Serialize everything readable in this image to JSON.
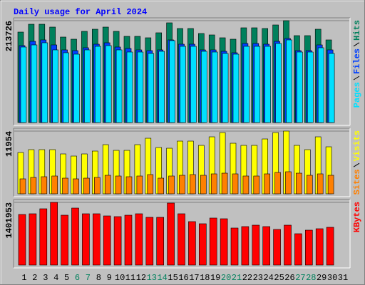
{
  "chart_data": [
    {
      "type": "bar",
      "title": "Daily usage for April 2024",
      "ylim": [
        0,
        213726
      ],
      "yticks": [
        213726
      ],
      "series": [
        {
          "name": "Hits",
          "color": "#00805c",
          "values": [
            189814,
            206255,
            206255,
            200276,
            179352,
            174868,
            191309,
            195793,
            200276,
            191309,
            180847,
            180847,
            177857,
            188320,
            209244,
            197287,
            197287,
            186825,
            183836,
            177857,
            174868,
            198782,
            198782,
            197287,
            204760,
            213726,
            182341,
            182341,
            195793,
            173374,
            null
          ]
        },
        {
          "name": "Files",
          "color": "#0040ff",
          "values": [
            161417,
            170384,
            173374,
            162911,
            152449,
            150955,
            156933,
            164406,
            167395,
            158428,
            155438,
            152449,
            150955,
            152449,
            173374,
            164406,
            164406,
            152449,
            152449,
            149460,
            146471,
            165901,
            165901,
            164406,
            170384,
            176363,
            150955,
            150955,
            162911,
            152449,
            null
          ]
        },
        {
          "name": "Pages",
          "color": "#00e0ff",
          "values": [
            158428,
            162911,
            167395,
            152449,
            146471,
            143482,
            152449,
            159922,
            161417,
            152449,
            147965,
            147965,
            144976,
            149460,
            171879,
            159922,
            159922,
            149460,
            147965,
            144976,
            143482,
            159922,
            159922,
            159922,
            165901,
            173374,
            147965,
            147965,
            156933,
            144976,
            null
          ]
        }
      ]
    },
    {
      "type": "bar",
      "ylim": [
        0,
        11954
      ],
      "yticks": [
        11954
      ],
      "series": [
        {
          "name": "Visits",
          "color": "#ffff00",
          "values": [
            7876,
            8420,
            8420,
            8420,
            7605,
            7197,
            7605,
            8148,
            9370,
            8284,
            8284,
            9370,
            10592,
            8827,
            8691,
            10049,
            10049,
            9234,
            10864,
            11679,
            9642,
            9234,
            9234,
            10457,
            11679,
            11954,
            9234,
            8420,
            10864,
            8963,
            null
          ]
        },
        {
          "name": "Sites",
          "color": "#ff8000",
          "values": [
            2852,
            3123,
            3259,
            3395,
            2988,
            2852,
            2988,
            3123,
            3531,
            3395,
            3259,
            3395,
            3667,
            2988,
            3395,
            3531,
            3667,
            3531,
            3802,
            3938,
            3802,
            3395,
            3395,
            3802,
            4074,
            4210,
            3938,
            3531,
            3802,
            3531,
            null
          ]
        }
      ]
    },
    {
      "type": "bar",
      "ylim": [
        0,
        1401953
      ],
      "yticks": [
        1401953
      ],
      "categories": [
        "1",
        "2",
        "3",
        "4",
        "5",
        "6",
        "7",
        "8",
        "9",
        "10",
        "11",
        "12",
        "13",
        "14",
        "15",
        "16",
        "17",
        "18",
        "19",
        "20",
        "21",
        "22",
        "23",
        "24",
        "25",
        "26",
        "27",
        "28",
        "29",
        "30",
        "31"
      ],
      "category_colors": [
        "#000000",
        "#000000",
        "#000000",
        "#000000",
        "#000000",
        "#00805c",
        "#00805c",
        "#000000",
        "#000000",
        "#000000",
        "#000000",
        "#000000",
        "#00805c",
        "#00805c",
        "#000000",
        "#000000",
        "#000000",
        "#000000",
        "#000000",
        "#00805c",
        "#00805c",
        "#000000",
        "#000000",
        "#000000",
        "#000000",
        "#000000",
        "#00805c",
        "#00805c",
        "#000000",
        "#000000",
        "#000000"
      ],
      "series": [
        {
          "name": "KBytes",
          "color": "#ff0000",
          "values": [
            1131101,
            1147032,
            1258549,
            1401953,
            1115170,
            1274480,
            1147032,
            1147032,
            1099239,
            1083308,
            1115170,
            1147032,
            1067377,
            1067377,
            1386022,
            1147032,
            971791,
            923998,
            1051446,
            1035515,
            828412,
            860274,
            892136,
            860274,
            796550,
            892136,
            700964,
            780619,
            812481,
            844343,
            null
          ]
        }
      ]
    }
  ]
}
